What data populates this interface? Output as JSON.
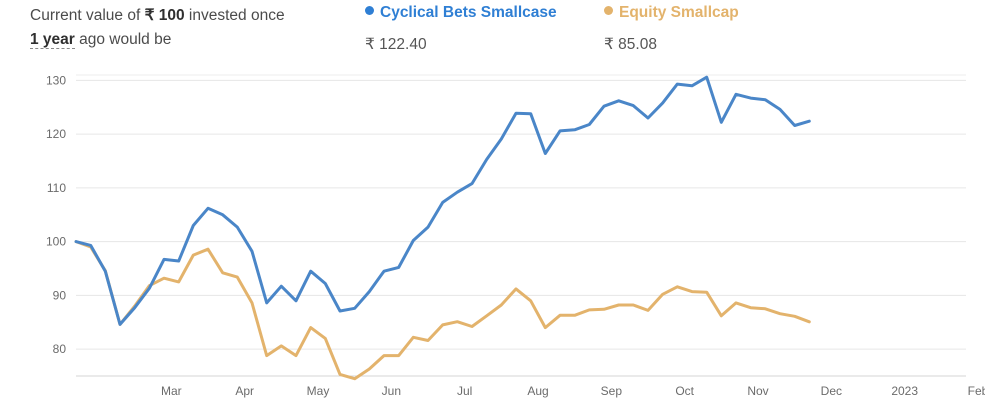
{
  "header": {
    "intro_prefix": "Current value of ",
    "intro_amount": "₹ 100",
    "intro_mid": " invested once",
    "intro_period": "1 year",
    "intro_suffix": " ago would be"
  },
  "chart_data": {
    "type": "line",
    "grid": "horizontal",
    "legend_position": "top",
    "ylim": [
      75,
      131
    ],
    "y_ticks": [
      "80",
      "90",
      "100",
      "110",
      "120",
      "130"
    ],
    "y_tick_values": [
      80,
      90,
      100,
      110,
      120,
      130
    ],
    "x_ticks": [
      "Mar",
      "Apr",
      "May",
      "Jun",
      "Jul",
      "Aug",
      "Sep",
      "Oct",
      "Nov",
      "Dec",
      "2023",
      "Feb"
    ],
    "x_tick_positions": [
      6.5,
      11.5,
      16.5,
      21.5,
      26.5,
      31.5,
      36.5,
      41.5,
      46.5,
      51.5,
      56.5,
      61.5
    ],
    "x_count": 60,
    "series": [
      {
        "name": "Cyclical Bets Smallcase",
        "value_label": "₹ 122.40",
        "color": "#4a86c8",
        "values": [
          100,
          99.3,
          94.5,
          84.6,
          87.7,
          91.3,
          96.7,
          96.4,
          103,
          106.2,
          105,
          102.7,
          98.2,
          88.6,
          91.7,
          89,
          94.5,
          92.2,
          87.1,
          87.6,
          90.7,
          94.5,
          95.2,
          100.2,
          102.7,
          107.3,
          109.2,
          110.8,
          115.3,
          119.1,
          123.9,
          123.8,
          116.4,
          120.6,
          120.8,
          121.8,
          125.2,
          126.2,
          125.3,
          123,
          125.8,
          129.3,
          129,
          130.6,
          122.2,
          127.4,
          126.7,
          126.4,
          124.6,
          121.6,
          122.4
        ]
      },
      {
        "name": "Equity Smallcap",
        "value_label": "₹ 85.08",
        "color": "#e3b36c",
        "values": [
          100,
          99,
          94.6,
          84.6,
          88,
          91.8,
          93.2,
          92.5,
          97.5,
          98.6,
          94.2,
          93.4,
          88.6,
          78.8,
          80.6,
          78.8,
          84,
          82,
          75.3,
          74.5,
          76.3,
          78.8,
          78.8,
          82.2,
          81.6,
          84.5,
          85.1,
          84.2,
          86.2,
          88.2,
          91.2,
          89,
          84,
          86.3,
          86.3,
          87.3,
          87.4,
          88.2,
          88.2,
          87.2,
          90.2,
          91.6,
          90.7,
          90.6,
          86.2,
          88.6,
          87.7,
          87.5,
          86.6,
          86.1,
          85.08
        ]
      }
    ]
  }
}
